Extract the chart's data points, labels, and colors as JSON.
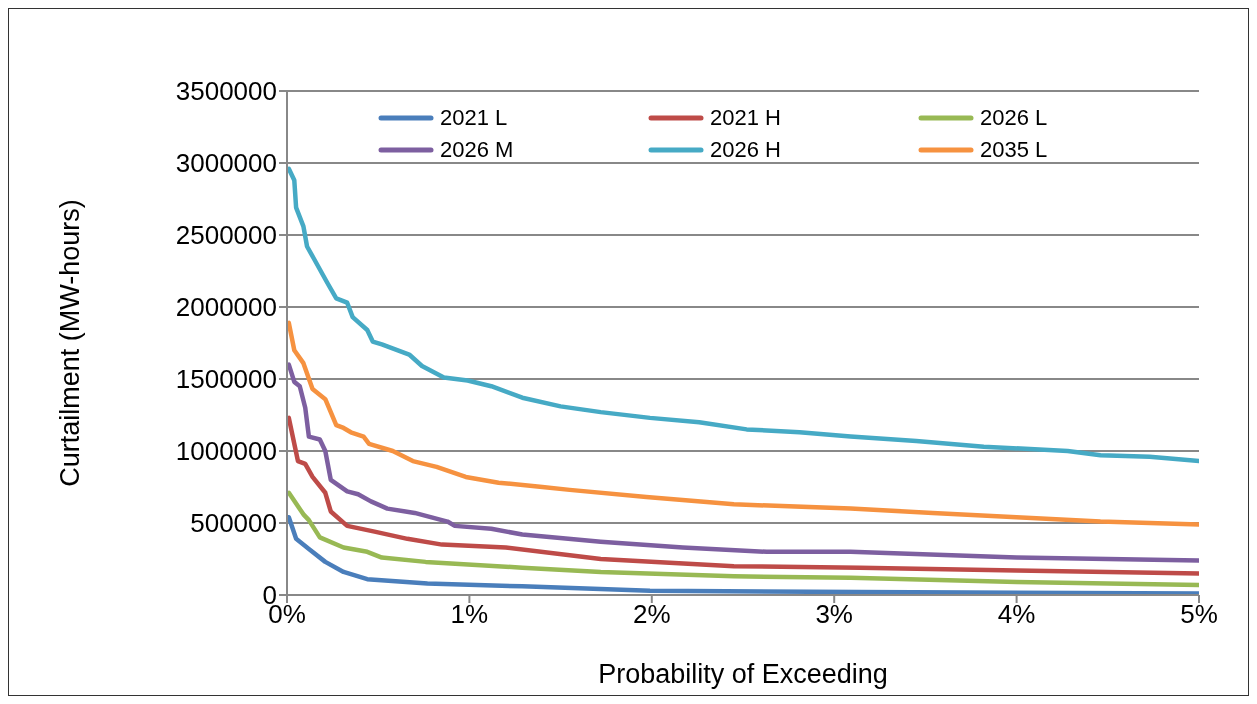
{
  "chart_data": {
    "type": "line",
    "xlabel": "Probability of Exceeding",
    "ylabel": "Curtailment (MW-hours)",
    "xlim": [
      0,
      5
    ],
    "xticks": [
      {
        "value": 0,
        "label": "0%"
      },
      {
        "value": 1,
        "label": "1%"
      },
      {
        "value": 2,
        "label": "2%"
      },
      {
        "value": 3,
        "label": "3%"
      },
      {
        "value": 4,
        "label": "4%"
      },
      {
        "value": 5,
        "label": "5%"
      }
    ],
    "ylim": [
      0,
      3500000
    ],
    "yticks": [
      0,
      500000,
      1000000,
      1500000,
      2000000,
      2500000,
      3000000,
      3500000
    ],
    "grid": "y",
    "legend": "top right",
    "marker": "none",
    "line_style": "solid",
    "series": [
      {
        "name": "2021 L",
        "color": "#4a7ebb",
        "x": [
          0.01,
          0.05,
          0.12,
          0.21,
          0.31,
          0.44,
          0.77,
          1.29,
          1.99,
          3.14,
          5
        ],
        "values": [
          540000,
          390000,
          320000,
          230000,
          160000,
          110000,
          80000,
          60000,
          30000,
          20000,
          10000
        ]
      },
      {
        "name": "2021 H",
        "color": "#be4b48",
        "x": [
          0.01,
          0.06,
          0.1,
          0.14,
          0.21,
          0.24,
          0.33,
          0.48,
          0.66,
          0.85,
          1.2,
          1.72,
          2.45,
          3.14,
          4,
          5
        ],
        "values": [
          1230000,
          930000,
          910000,
          820000,
          710000,
          580000,
          480000,
          440000,
          390000,
          350000,
          330000,
          250000,
          200000,
          190000,
          170000,
          150000
        ]
      },
      {
        "name": "2026 L",
        "color": "#98b954",
        "x": [
          0.01,
          0.09,
          0.12,
          0.18,
          0.31,
          0.44,
          0.52,
          0.76,
          1.29,
          1.72,
          2.45,
          3.09,
          4,
          5
        ],
        "values": [
          710000,
          560000,
          520000,
          400000,
          330000,
          300000,
          260000,
          230000,
          190000,
          160000,
          130000,
          120000,
          90000,
          70000
        ]
      },
      {
        "name": "2026 M",
        "color": "#7d5fa0",
        "x": [
          0.01,
          0.04,
          0.07,
          0.1,
          0.12,
          0.18,
          0.21,
          0.24,
          0.33,
          0.39,
          0.46,
          0.55,
          0.7,
          0.88,
          0.92,
          1.12,
          1.29,
          1.72,
          2.17,
          2.63,
          3.09,
          4,
          5
        ],
        "values": [
          1600000,
          1480000,
          1450000,
          1300000,
          1100000,
          1080000,
          1000000,
          800000,
          720000,
          700000,
          650000,
          600000,
          570000,
          510000,
          480000,
          460000,
          420000,
          370000,
          330000,
          300000,
          300000,
          260000,
          240000
        ]
      },
      {
        "name": "2026 H",
        "color": "#46aac5",
        "x": [
          0.01,
          0.04,
          0.05,
          0.09,
          0.11,
          0.15,
          0.22,
          0.27,
          0.33,
          0.36,
          0.44,
          0.47,
          0.52,
          0.67,
          0.74,
          0.86,
          0.99,
          1.12,
          1.29,
          1.5,
          1.72,
          1.99,
          2.26,
          2.52,
          2.81,
          3.09,
          3.45,
          3.82,
          4.28,
          4.46,
          4.73,
          5
        ],
        "values": [
          2960000,
          2880000,
          2690000,
          2560000,
          2420000,
          2330000,
          2170000,
          2060000,
          2030000,
          1930000,
          1840000,
          1760000,
          1740000,
          1670000,
          1590000,
          1510000,
          1490000,
          1450000,
          1370000,
          1310000,
          1270000,
          1230000,
          1200000,
          1150000,
          1130000,
          1100000,
          1070000,
          1030000,
          1000000,
          970000,
          960000,
          930000
        ]
      },
      {
        "name": "2035 L",
        "color": "#f69240",
        "x": [
          0.01,
          0.04,
          0.09,
          0.14,
          0.21,
          0.27,
          0.31,
          0.35,
          0.42,
          0.45,
          0.58,
          0.69,
          0.82,
          0.98,
          1.16,
          1.4,
          1.55,
          1.97,
          2.45,
          3.09,
          3.54,
          4,
          4.46,
          5
        ],
        "values": [
          1890000,
          1700000,
          1610000,
          1430000,
          1360000,
          1180000,
          1160000,
          1130000,
          1100000,
          1050000,
          1000000,
          930000,
          890000,
          820000,
          780000,
          750000,
          730000,
          680000,
          630000,
          600000,
          570000,
          540000,
          510000,
          490000
        ]
      }
    ]
  }
}
